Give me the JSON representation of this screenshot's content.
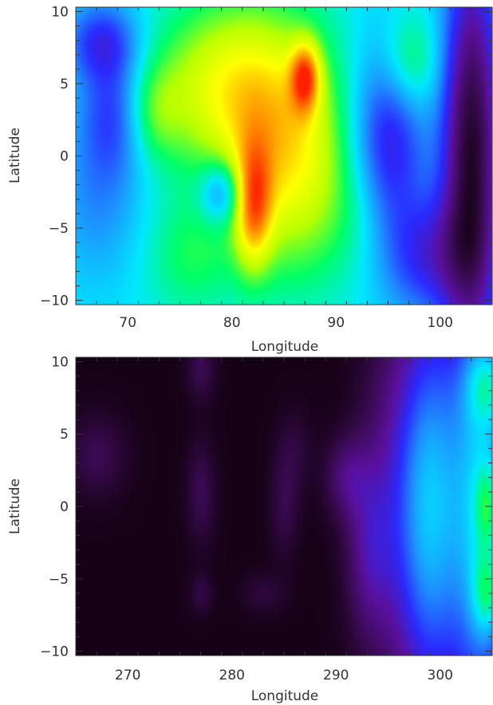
{
  "colors": {
    "colormap": [
      "#0d0008",
      "#3a0a52",
      "#5a10a0",
      "#2a2aff",
      "#1e90ff",
      "#00e8ff",
      "#00ff66",
      "#b8ff00",
      "#ffff00",
      "#ff9000",
      "#ff2000"
    ],
    "axis": "#333333"
  },
  "chart_data": [
    {
      "type": "heatmap",
      "xlabel": "Longitude",
      "ylabel": "Latitude",
      "xlim": [
        65,
        105
      ],
      "ylim": [
        -10.3,
        10.3
      ],
      "x_ticks": [
        70,
        80,
        90,
        100
      ],
      "x_tick_labels": [
        "70",
        "80",
        "90",
        "100"
      ],
      "y_ticks": [
        10,
        5,
        0,
        -5,
        -10
      ],
      "y_tick_labels": [
        "10",
        "5",
        "0",
        "−5",
        "−10"
      ],
      "value_range": [
        0,
        1
      ],
      "background": 0.5,
      "blobs": [
        {
          "x": 67.5,
          "y": 8.0,
          "sx": 2.5,
          "sy": 2.0,
          "a": -0.2
        },
        {
          "x": 69,
          "y": 3.0,
          "sx": 2.5,
          "sy": 3.0,
          "a": -0.2
        },
        {
          "x": 67,
          "y": -3.0,
          "sx": 3.0,
          "sy": 4.0,
          "a": -0.1
        },
        {
          "x": 78,
          "y": 5.0,
          "sx": 5.0,
          "sy": 4.0,
          "a": 0.15
        },
        {
          "x": 72,
          "y": 3.0,
          "sx": 2.0,
          "sy": 2.5,
          "a": 0.15
        },
        {
          "x": 76,
          "y": -7.0,
          "sx": 3.0,
          "sy": 3.0,
          "a": 0.1
        },
        {
          "x": 83,
          "y": 4.0,
          "sx": 5.0,
          "sy": 5.0,
          "a": 0.2
        },
        {
          "x": 86,
          "y": -2.0,
          "sx": 4.0,
          "sy": 5.0,
          "a": 0.2
        },
        {
          "x": 87,
          "y": 5.5,
          "sx": 1.0,
          "sy": 1.7,
          "a": 0.3
        },
        {
          "x": 82,
          "y": -3.5,
          "sx": 1.3,
          "sy": 3.0,
          "a": 0.3
        },
        {
          "x": 79,
          "y": -2.5,
          "sx": 1.5,
          "sy": 1.5,
          "a": -0.2
        },
        {
          "x": 95,
          "y": 1.0,
          "sx": 2.5,
          "sy": 5.0,
          "a": -0.25
        },
        {
          "x": 93,
          "y": -4.0,
          "sx": 2.5,
          "sy": 3.0,
          "a": 0.05
        },
        {
          "x": 97,
          "y": 6.5,
          "sx": 2.0,
          "sy": 2.5,
          "a": 0.15
        },
        {
          "x": 103,
          "y": 0.0,
          "sx": 2.0,
          "sy": 10.0,
          "a": -0.45
        },
        {
          "x": 99,
          "y": -7.0,
          "sx": 3.0,
          "sy": 3.0,
          "a": -0.2
        }
      ]
    },
    {
      "type": "heatmap",
      "xlabel": "Longitude",
      "ylabel": "Latitude",
      "xlim": [
        265,
        305
      ],
      "ylim": [
        -10.3,
        10.3
      ],
      "x_ticks": [
        270,
        280,
        290,
        300
      ],
      "x_tick_labels": [
        "270",
        "280",
        "290",
        "300"
      ],
      "y_ticks": [
        10,
        5,
        0,
        -5,
        -10
      ],
      "y_tick_labels": [
        "10",
        "5",
        "0",
        "−5",
        "−10"
      ],
      "value_range": [
        0,
        1
      ],
      "background": 0.02,
      "blobs": [
        {
          "x": 267,
          "y": 3.5,
          "sx": 2.0,
          "sy": 2.0,
          "a": 0.08
        },
        {
          "x": 277,
          "y": 9.5,
          "sx": 1.0,
          "sy": 1.5,
          "a": 0.08
        },
        {
          "x": 277,
          "y": 1.0,
          "sx": 1.0,
          "sy": 2.5,
          "a": 0.08
        },
        {
          "x": 277,
          "y": -6.0,
          "sx": 0.8,
          "sy": 1.0,
          "a": 0.06
        },
        {
          "x": 285,
          "y": 0.0,
          "sx": 1.0,
          "sy": 2.5,
          "a": 0.07
        },
        {
          "x": 283,
          "y": -6.0,
          "sx": 1.5,
          "sy": 1.0,
          "a": 0.05
        },
        {
          "x": 286,
          "y": 4.0,
          "sx": 1.2,
          "sy": 2.0,
          "a": 0.05
        },
        {
          "x": 291,
          "y": 2.0,
          "sx": 1.5,
          "sy": 2.0,
          "a": 0.12
        },
        {
          "x": 293,
          "y": -3.0,
          "sx": 1.5,
          "sy": 4.0,
          "a": 0.12
        },
        {
          "x": 296,
          "y": 0.0,
          "sx": 2.5,
          "sy": 9.0,
          "a": 0.18
        },
        {
          "x": 299,
          "y": 0.0,
          "sx": 2.0,
          "sy": 10.0,
          "a": 0.3
        },
        {
          "x": 304,
          "y": 0.0,
          "sx": 2.5,
          "sy": 12.0,
          "a": 0.45
        },
        {
          "x": 304.5,
          "y": 8.5,
          "sx": 1.5,
          "sy": 2.0,
          "a": 0.18
        },
        {
          "x": 304.5,
          "y": -6.0,
          "sx": 1.0,
          "sy": 2.0,
          "a": 0.18
        },
        {
          "x": 304.5,
          "y": 0.0,
          "sx": 0.8,
          "sy": 2.0,
          "a": 0.15
        }
      ]
    }
  ]
}
